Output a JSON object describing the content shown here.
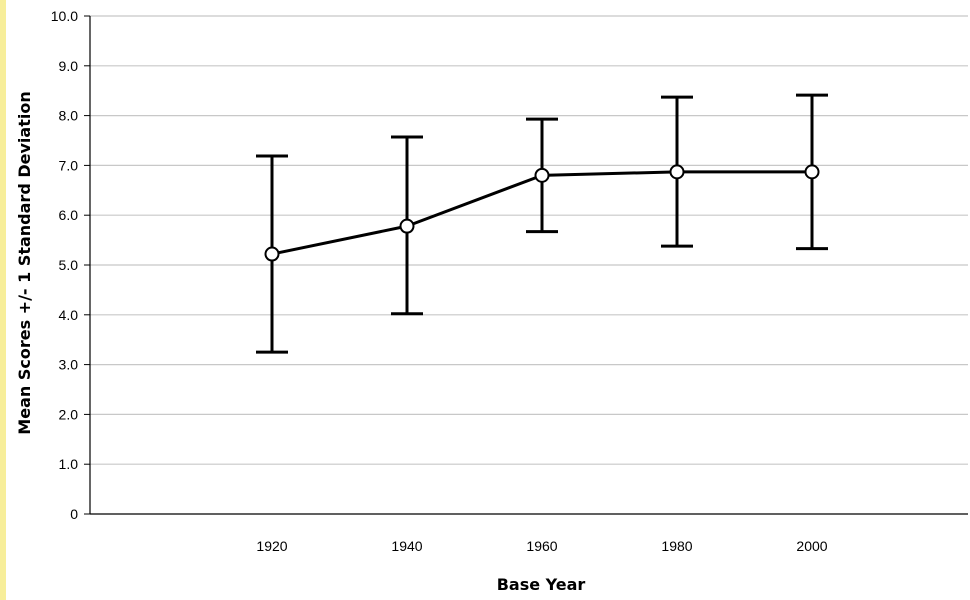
{
  "chart_data": {
    "type": "line",
    "title": "",
    "xlabel": "Base Year",
    "ylabel": "Mean Scores +/- 1 Standard Deviation",
    "categories": [
      "1920",
      "1940",
      "1960",
      "1980",
      "2000"
    ],
    "series": [
      {
        "values": [
          5.22,
          5.78,
          6.8,
          6.87,
          6.87
        ],
        "lower": [
          3.25,
          4.02,
          5.67,
          5.38,
          5.33
        ],
        "upper": [
          7.19,
          7.57,
          7.93,
          8.37,
          8.41
        ]
      }
    ],
    "ylim": [
      0,
      10
    ],
    "yticks": [
      "0",
      "1.0",
      "2.0",
      "3.0",
      "4.0",
      "5.0",
      "6.0",
      "7.0",
      "8.0",
      "9.0",
      "10.0"
    ],
    "grid": true,
    "legend": "none",
    "colors": {
      "line": "#000000",
      "grid": "#c8c8c8",
      "marker_fill": "#ffffff",
      "left_stripe": "#f7ee9a"
    }
  }
}
